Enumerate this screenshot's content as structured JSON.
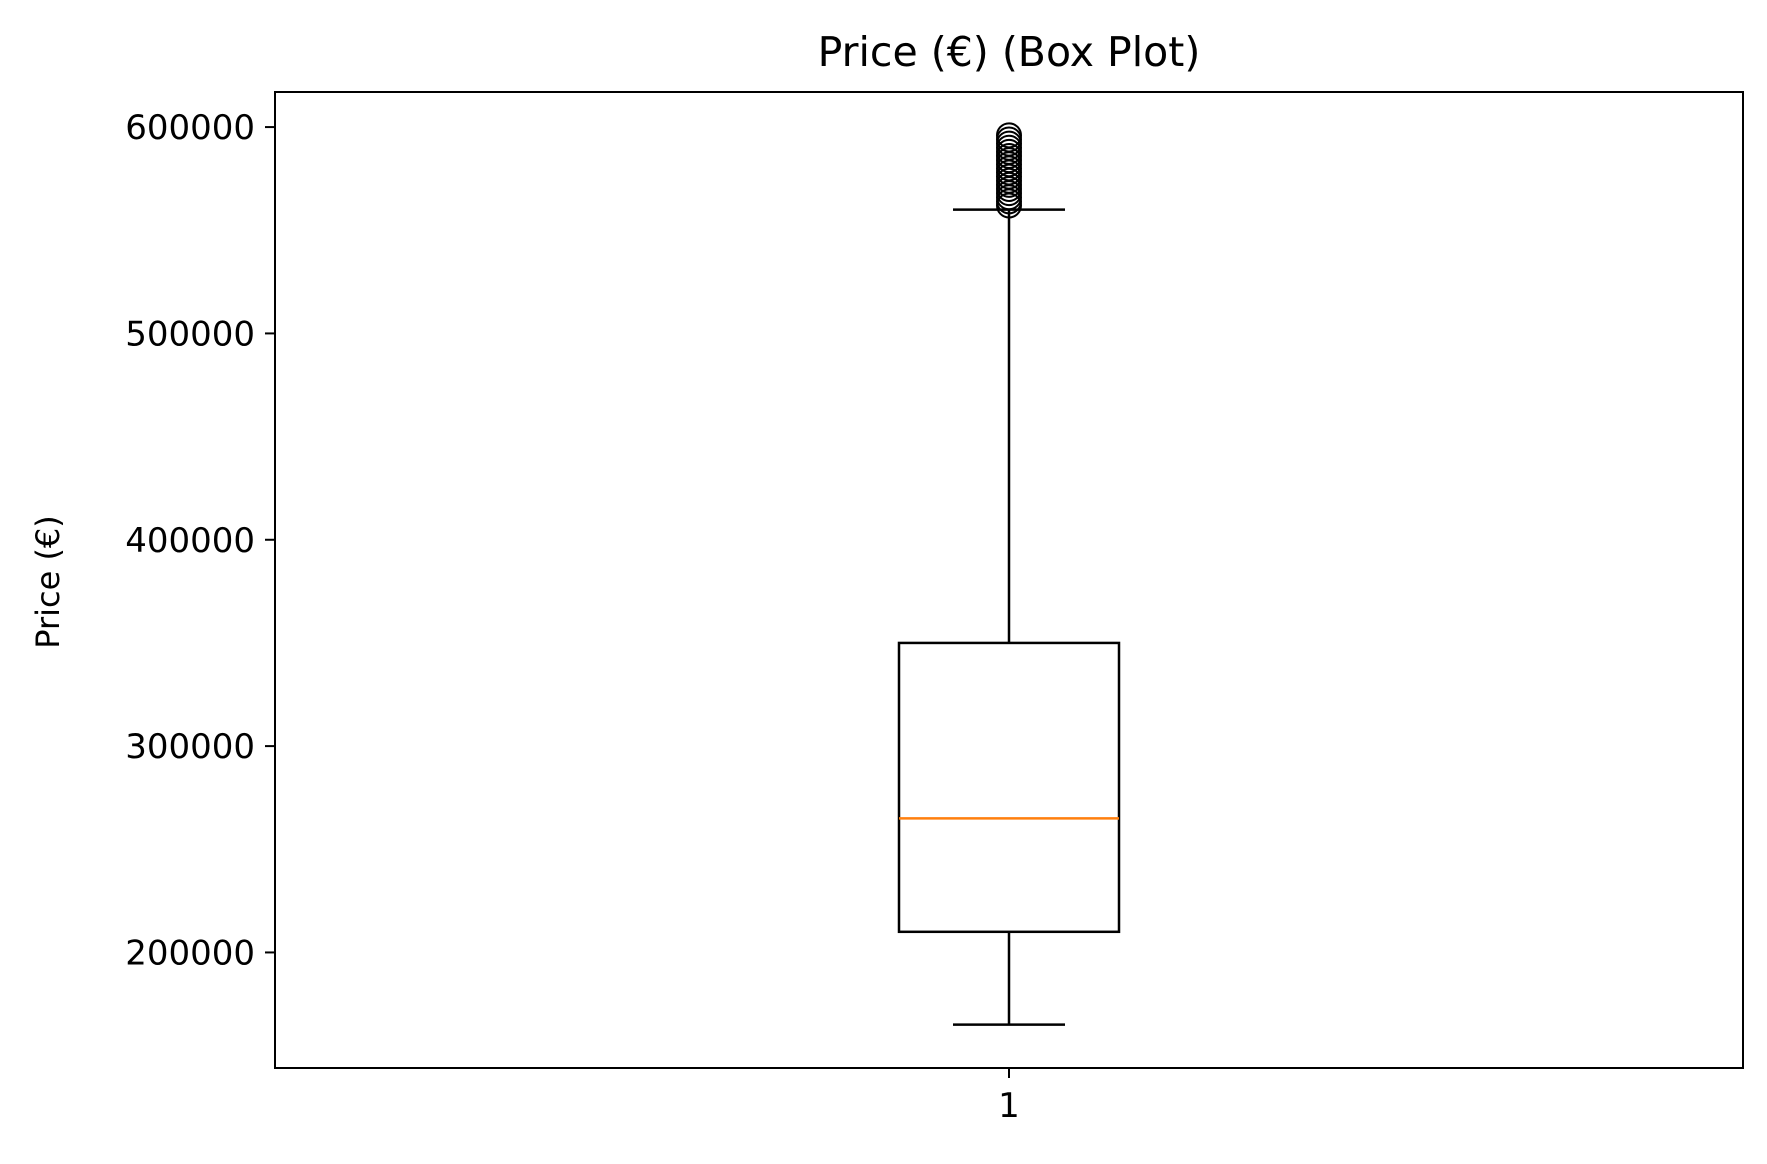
{
  "chart_data": {
    "type": "box",
    "title": "Price (€) (Box Plot)",
    "xlabel": "",
    "ylabel": "Price (€)",
    "categories": [
      "1"
    ],
    "ylim": [
      144000,
      617000
    ],
    "yticks": [
      200000,
      300000,
      400000,
      500000,
      600000
    ],
    "yticklabels": [
      "200000",
      "300000",
      "400000",
      "500000",
      "600000"
    ],
    "grid": false,
    "boxes": [
      {
        "category": "1",
        "whisker_low": 165000,
        "q1": 210000,
        "median": 265000,
        "q3": 350000,
        "whisker_high": 560000,
        "outliers": [
          562000,
          564000,
          566000,
          568000,
          570000,
          572000,
          574000,
          576000,
          578000,
          580000,
          582000,
          584000,
          586000,
          588000,
          590000,
          592000,
          594000,
          596000
        ]
      }
    ],
    "colors": {
      "box": "#000000",
      "median": "#ff7f0e",
      "outlier": "#000000"
    }
  }
}
